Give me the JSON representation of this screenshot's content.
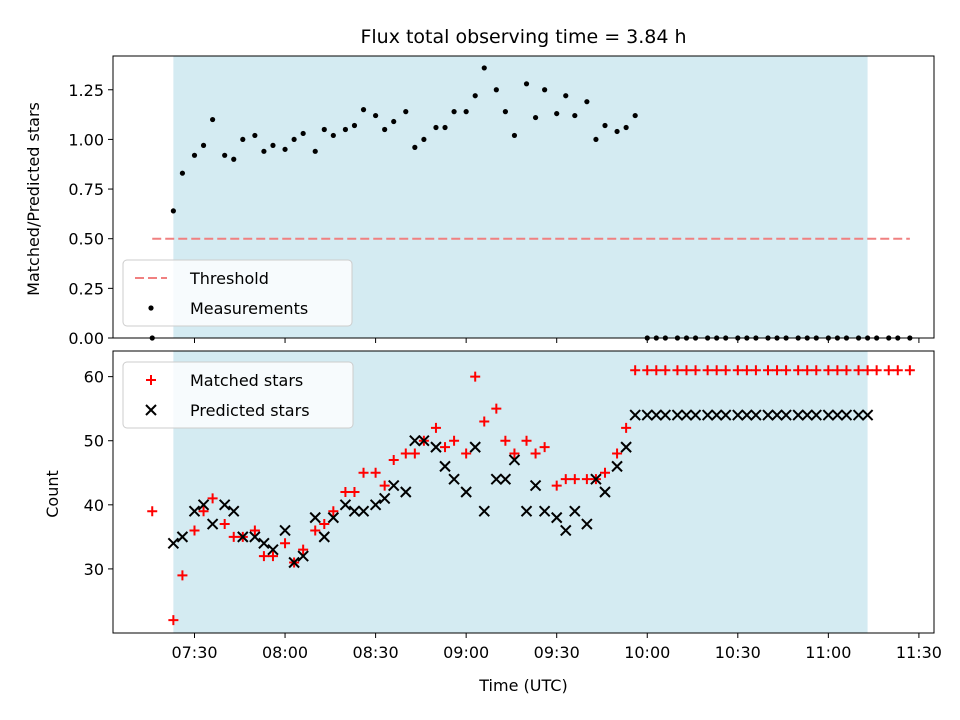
{
  "chart_data": [
    {
      "type": "scatter",
      "title": "Flux total observing time = 3.84 h",
      "xlabel": "",
      "ylabel": "Matched/Predicted stars",
      "xlim": [
        "07:03",
        "11:35"
      ],
      "ylim": [
        0,
        1.42
      ],
      "yticks": [
        "0.00",
        "0.25",
        "0.50",
        "0.75",
        "1.00",
        "1.25"
      ],
      "observing_window": [
        "07:23",
        "11:13"
      ],
      "observing_window_color": "#d4ebf2",
      "legend_position": "lower-left",
      "series": [
        {
          "name": "Threshold",
          "kind": "dashed-line",
          "color": "#f08080",
          "x": [
            "07:16",
            "11:27"
          ],
          "y": [
            0.5,
            0.5
          ]
        },
        {
          "name": "Measurements",
          "kind": "dot",
          "color": "#000000",
          "x": [
            "07:16",
            "07:23",
            "07:26",
            "07:30",
            "07:33",
            "07:36",
            "07:40",
            "07:43",
            "07:46",
            "07:50",
            "07:53",
            "07:56",
            "08:00",
            "08:03",
            "08:06",
            "08:10",
            "08:13",
            "08:16",
            "08:20",
            "08:23",
            "08:26",
            "08:30",
            "08:33",
            "08:36",
            "08:40",
            "08:43",
            "08:46",
            "08:50",
            "08:53",
            "08:56",
            "09:00",
            "09:03",
            "09:06",
            "09:10",
            "09:13",
            "09:16",
            "09:20",
            "09:23",
            "09:26",
            "09:30",
            "09:33",
            "09:36",
            "09:40",
            "09:43",
            "09:46",
            "09:50",
            "09:53",
            "09:56",
            "10:00",
            "10:03",
            "10:06",
            "10:10",
            "10:13",
            "10:16",
            "10:20",
            "10:23",
            "10:26",
            "10:30",
            "10:33",
            "10:36",
            "10:40",
            "10:43",
            "10:46",
            "10:50",
            "10:53",
            "10:56",
            "11:00",
            "11:03",
            "11:06",
            "11:10",
            "11:13",
            "11:16",
            "11:20",
            "11:23",
            "11:27"
          ],
          "y": [
            0.0,
            0.64,
            0.83,
            0.92,
            0.97,
            1.1,
            0.92,
            0.9,
            1.0,
            1.02,
            0.94,
            0.97,
            0.95,
            1.0,
            1.03,
            0.94,
            1.05,
            1.02,
            1.05,
            1.07,
            1.15,
            1.12,
            1.05,
            1.09,
            1.14,
            0.96,
            1.0,
            1.06,
            1.06,
            1.14,
            1.14,
            1.22,
            1.36,
            1.25,
            1.14,
            1.02,
            1.28,
            1.11,
            1.25,
            1.13,
            1.22,
            1.12,
            1.19,
            1.0,
            1.07,
            1.04,
            1.06,
            1.12,
            0.0,
            0.0,
            0.0,
            0.0,
            0.0,
            0.0,
            0.0,
            0.0,
            0.0,
            0.0,
            0.0,
            0.0,
            0.0,
            0.0,
            0.0,
            0.0,
            0.0,
            0.0,
            0.0,
            0.0,
            0.0,
            0.0,
            0.0,
            0.0,
            0.0,
            0.0,
            0.0
          ]
        }
      ]
    },
    {
      "type": "scatter",
      "title": "",
      "xlabel": "Time (UTC)",
      "ylabel": "Count",
      "xlim": [
        "07:03",
        "11:35"
      ],
      "ylim": [
        20,
        64
      ],
      "xticks": [
        "07:30",
        "08:00",
        "08:30",
        "09:00",
        "09:30",
        "10:00",
        "10:30",
        "11:00",
        "11:30"
      ],
      "yticks": [
        "30",
        "40",
        "50",
        "60"
      ],
      "observing_window": [
        "07:23",
        "11:13"
      ],
      "observing_window_color": "#d4ebf2",
      "legend_position": "upper-left",
      "series": [
        {
          "name": "Matched stars",
          "kind": "plus",
          "color": "#ff0000",
          "x": [
            "07:16",
            "07:23",
            "07:26",
            "07:30",
            "07:33",
            "07:36",
            "07:40",
            "07:43",
            "07:46",
            "07:50",
            "07:53",
            "07:56",
            "08:00",
            "08:03",
            "08:06",
            "08:10",
            "08:13",
            "08:16",
            "08:20",
            "08:23",
            "08:26",
            "08:30",
            "08:33",
            "08:36",
            "08:40",
            "08:43",
            "08:46",
            "08:50",
            "08:53",
            "08:56",
            "09:00",
            "09:03",
            "09:06",
            "09:10",
            "09:13",
            "09:16",
            "09:20",
            "09:23",
            "09:26",
            "09:30",
            "09:33",
            "09:36",
            "09:40",
            "09:43",
            "09:46",
            "09:50",
            "09:53",
            "09:56",
            "10:00",
            "10:03",
            "10:06",
            "10:10",
            "10:13",
            "10:16",
            "10:20",
            "10:23",
            "10:26",
            "10:30",
            "10:33",
            "10:36",
            "10:40",
            "10:43",
            "10:46",
            "10:50",
            "10:53",
            "10:56",
            "11:00",
            "11:03",
            "11:06",
            "11:10",
            "11:13",
            "11:16",
            "11:20",
            "11:23",
            "11:27"
          ],
          "y": [
            39,
            22,
            29,
            36,
            39,
            41,
            37,
            35,
            35,
            36,
            32,
            32,
            34,
            31,
            33,
            36,
            37,
            39,
            42,
            42,
            45,
            45,
            43,
            47,
            48,
            48,
            50,
            52,
            49,
            50,
            48,
            60,
            53,
            55,
            50,
            48,
            50,
            48,
            49,
            43,
            44,
            44,
            44,
            44,
            45,
            48,
            52,
            61,
            61,
            61,
            61,
            61,
            61,
            61,
            61,
            61,
            61,
            61,
            61,
            61,
            61,
            61,
            61,
            61,
            61,
            61,
            61,
            61,
            61,
            61,
            61,
            61,
            61,
            61,
            61
          ]
        },
        {
          "name": "Predicted stars",
          "kind": "cross",
          "color": "#000000",
          "x": [
            "07:23",
            "07:26",
            "07:30",
            "07:33",
            "07:36",
            "07:40",
            "07:43",
            "07:46",
            "07:50",
            "07:53",
            "07:56",
            "08:00",
            "08:03",
            "08:06",
            "08:10",
            "08:13",
            "08:16",
            "08:20",
            "08:23",
            "08:26",
            "08:30",
            "08:33",
            "08:36",
            "08:40",
            "08:43",
            "08:46",
            "08:50",
            "08:53",
            "08:56",
            "09:00",
            "09:03",
            "09:06",
            "09:10",
            "09:13",
            "09:16",
            "09:20",
            "09:23",
            "09:26",
            "09:30",
            "09:33",
            "09:36",
            "09:40",
            "09:43",
            "09:46",
            "09:50",
            "09:53",
            "09:56",
            "10:00",
            "10:03",
            "10:06",
            "10:10",
            "10:13",
            "10:16",
            "10:20",
            "10:23",
            "10:26",
            "10:30",
            "10:33",
            "10:36",
            "10:40",
            "10:43",
            "10:46",
            "10:50",
            "10:53",
            "10:56",
            "11:00",
            "11:03",
            "11:06",
            "11:10",
            "11:13"
          ],
          "y": [
            34,
            35,
            39,
            40,
            37,
            40,
            39,
            35,
            35,
            34,
            33,
            36,
            31,
            32,
            38,
            35,
            38,
            40,
            39,
            39,
            40,
            41,
            43,
            42,
            50,
            50,
            49,
            46,
            44,
            42,
            49,
            39,
            44,
            44,
            47,
            39,
            43,
            39,
            38,
            36,
            39,
            37,
            44,
            42,
            46,
            49,
            54,
            54,
            54,
            54,
            54,
            54,
            54,
            54,
            54,
            54,
            54,
            54,
            54,
            54,
            54,
            54,
            54,
            54,
            54,
            54,
            54,
            54,
            54,
            54
          ]
        }
      ]
    }
  ]
}
